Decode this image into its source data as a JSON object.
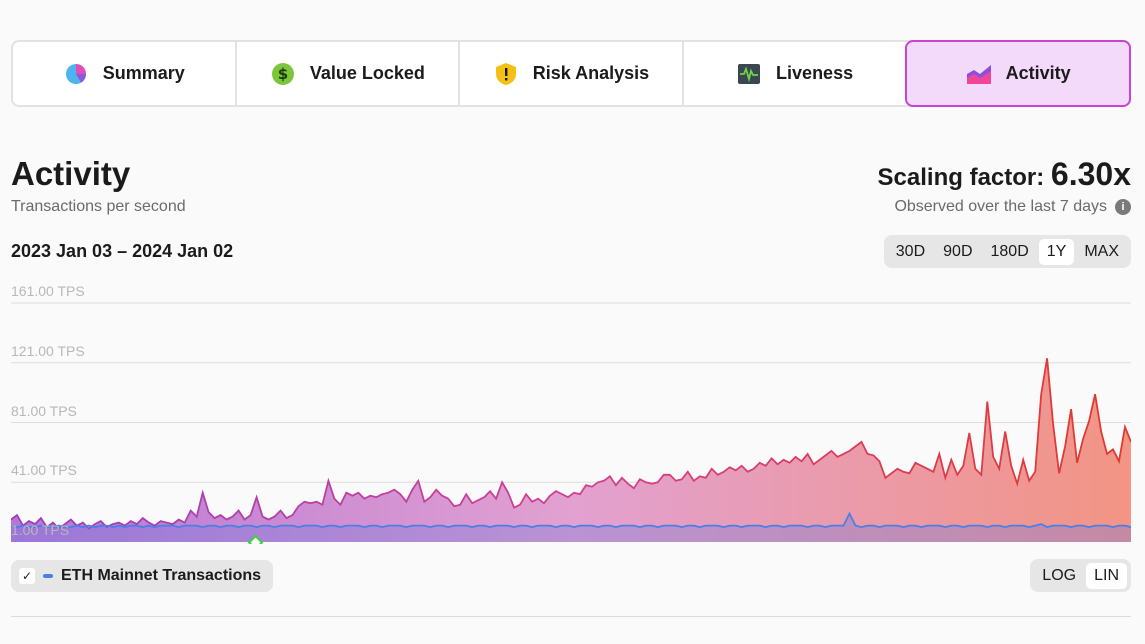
{
  "tabs": [
    {
      "label": "Summary",
      "icon": "pie-chart-icon"
    },
    {
      "label": "Value Locked",
      "icon": "dollar-coin-icon"
    },
    {
      "label": "Risk Analysis",
      "icon": "shield-warning-icon"
    },
    {
      "label": "Liveness",
      "icon": "heartbeat-icon"
    },
    {
      "label": "Activity",
      "icon": "area-chart-icon",
      "active": true
    }
  ],
  "header": {
    "title": "Activity",
    "subtitle": "Transactions per second",
    "scaling_label": "Scaling factor:",
    "scaling_value": "6.30x",
    "observed": "Observed over the last 7 days"
  },
  "date_range": "2023 Jan 03 – 2024 Jan 02",
  "range_buttons": [
    "30D",
    "90D",
    "180D",
    "1Y",
    "MAX"
  ],
  "range_selected": "1Y",
  "scale_buttons": [
    "LOG",
    "LIN"
  ],
  "scale_selected": "LIN",
  "legend": {
    "label": "ETH Mainnet Transactions",
    "checked": true
  },
  "colors": {
    "accent": "#c842d6",
    "eth_line": "#4a7fe5",
    "grad_start": "#9b3fbf",
    "grad_end": "#e03a2a"
  },
  "chart_data": {
    "type": "area",
    "y_tick_labels": [
      "161.00 TPS",
      "121.00 TPS",
      "81.00 TPS",
      "41.00 TPS",
      "1.00 TPS"
    ],
    "ylim": [
      1,
      161
    ],
    "x_start": "2023 Jan 03",
    "x_end": "2024 Jan 02",
    "series": [
      {
        "values": [
          16,
          19,
          12,
          15,
          13,
          17,
          11,
          14,
          10,
          13,
          16,
          12,
          14,
          10,
          13,
          15,
          11,
          13,
          14,
          12,
          15,
          13,
          17,
          14,
          12,
          15,
          14,
          13,
          16,
          14,
          22,
          18,
          34,
          21,
          17,
          19,
          16,
          18,
          22,
          16,
          19,
          31,
          18,
          16,
          18,
          22,
          17,
          19,
          25,
          28,
          27,
          28,
          26,
          42,
          30,
          26,
          34,
          32,
          34,
          30,
          32,
          31,
          33,
          34,
          36,
          33,
          28,
          36,
          42,
          28,
          31,
          36,
          32,
          30,
          25,
          26,
          33,
          27,
          29,
          31,
          35,
          30,
          41,
          34,
          24,
          26,
          33,
          28,
          30,
          27,
          32,
          35,
          33,
          31,
          34,
          33,
          39,
          38,
          41,
          42,
          45,
          39,
          44,
          40,
          37,
          43,
          41,
          40,
          41,
          46,
          46,
          42,
          43,
          48,
          42,
          45,
          44,
          50,
          46,
          48,
          51,
          49,
          52,
          48,
          50,
          54,
          52,
          57,
          53,
          56,
          54,
          58,
          55,
          60,
          53,
          56,
          59,
          62,
          58,
          60,
          62,
          65,
          68,
          60,
          59,
          55,
          44,
          47,
          50,
          48,
          47,
          54,
          52,
          50,
          48,
          60,
          44,
          56,
          46,
          52,
          74,
          50,
          46,
          95,
          58,
          50,
          75,
          52,
          40,
          56,
          42,
          48,
          100,
          124,
          80,
          47,
          65,
          90,
          54,
          70,
          82,
          100,
          75,
          60,
          63,
          55,
          78,
          68
        ]
      },
      {
        "name": "ETH Mainnet Transactions",
        "values": [
          11,
          11,
          12,
          11,
          11,
          12,
          11,
          11,
          12,
          11,
          11,
          12,
          11,
          12,
          11,
          12,
          12,
          11,
          12,
          11,
          12,
          12,
          11,
          12,
          11,
          12,
          12,
          12,
          11,
          12,
          12,
          12,
          11,
          12,
          12,
          11,
          12,
          12,
          11,
          12,
          12,
          11,
          12,
          12,
          11,
          12,
          12,
          12,
          11,
          12,
          12,
          12,
          11,
          12,
          12,
          11,
          12,
          12,
          12,
          11,
          12,
          12,
          11,
          12,
          12,
          12,
          11,
          12,
          12,
          12,
          11,
          12,
          12,
          11,
          12,
          12,
          12,
          11,
          12,
          12,
          11,
          12,
          12,
          12,
          11,
          12,
          12,
          11,
          12,
          12,
          12,
          11,
          12,
          12,
          11,
          12,
          12,
          12,
          11,
          12,
          12,
          11,
          12,
          12,
          12,
          11,
          12,
          12,
          11,
          12,
          12,
          12,
          11,
          12,
          12,
          11,
          12,
          12,
          12,
          11,
          12,
          12,
          11,
          12,
          12,
          12,
          11,
          12,
          12,
          11,
          12,
          12,
          12,
          11,
          12,
          12,
          11,
          12,
          12,
          12,
          20,
          12,
          11,
          12,
          12,
          11,
          12,
          12,
          12,
          11,
          12,
          12,
          11,
          12,
          12,
          12,
          11,
          12,
          12,
          11,
          12,
          12,
          12,
          11,
          12,
          12,
          11,
          12,
          12,
          12,
          11,
          12,
          13,
          11,
          12,
          12,
          12,
          11,
          12,
          12,
          11,
          12,
          12,
          12,
          11,
          12,
          12,
          11
        ]
      }
    ]
  }
}
